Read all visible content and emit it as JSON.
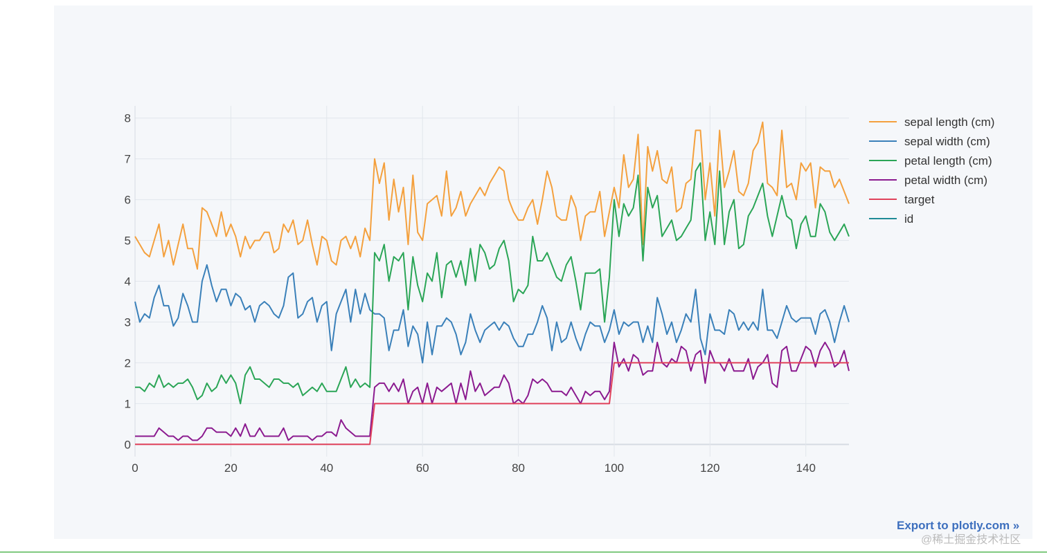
{
  "chart_data": {
    "type": "line",
    "title": "",
    "xlabel": "",
    "ylabel": "",
    "xlim": [
      0,
      149
    ],
    "ylim": [
      -0.3,
      8.3
    ],
    "x_ticks": [
      0,
      20,
      40,
      60,
      80,
      100,
      120,
      140
    ],
    "y_ticks": [
      0,
      1,
      2,
      3,
      4,
      5,
      6,
      7,
      8
    ],
    "grid": true,
    "legend_position": "right",
    "series": [
      {
        "name": "sepal length (cm)",
        "color": "#f4a03d",
        "values": [
          5.1,
          4.9,
          4.7,
          4.6,
          5.0,
          5.4,
          4.6,
          5.0,
          4.4,
          4.9,
          5.4,
          4.8,
          4.8,
          4.3,
          5.8,
          5.7,
          5.4,
          5.1,
          5.7,
          5.1,
          5.4,
          5.1,
          4.6,
          5.1,
          4.8,
          5.0,
          5.0,
          5.2,
          5.2,
          4.7,
          4.8,
          5.4,
          5.2,
          5.5,
          4.9,
          5.0,
          5.5,
          4.9,
          4.4,
          5.1,
          5.0,
          4.5,
          4.4,
          5.0,
          5.1,
          4.8,
          5.1,
          4.6,
          5.3,
          5.0,
          7.0,
          6.4,
          6.9,
          5.5,
          6.5,
          5.7,
          6.3,
          4.9,
          6.6,
          5.2,
          5.0,
          5.9,
          6.0,
          6.1,
          5.6,
          6.7,
          5.6,
          5.8,
          6.2,
          5.6,
          5.9,
          6.1,
          6.3,
          6.1,
          6.4,
          6.6,
          6.8,
          6.7,
          6.0,
          5.7,
          5.5,
          5.5,
          5.8,
          6.0,
          5.4,
          6.0,
          6.7,
          6.3,
          5.6,
          5.5,
          5.5,
          6.1,
          5.8,
          5.0,
          5.6,
          5.7,
          5.7,
          6.2,
          5.1,
          5.7,
          6.3,
          5.8,
          7.1,
          6.3,
          6.5,
          7.6,
          4.9,
          7.3,
          6.7,
          7.2,
          6.5,
          6.4,
          6.8,
          5.7,
          5.8,
          6.4,
          6.5,
          7.7,
          7.7,
          6.0,
          6.9,
          5.6,
          7.7,
          6.3,
          6.7,
          7.2,
          6.2,
          6.1,
          6.4,
          7.2,
          7.4,
          7.9,
          6.4,
          6.3,
          6.1,
          7.7,
          6.3,
          6.4,
          6.0,
          6.9,
          6.7,
          6.9,
          5.8,
          6.8,
          6.7,
          6.7,
          6.3,
          6.5,
          6.2,
          5.9
        ]
      },
      {
        "name": "sepal width (cm)",
        "color": "#3a80b9",
        "values": [
          3.5,
          3.0,
          3.2,
          3.1,
          3.6,
          3.9,
          3.4,
          3.4,
          2.9,
          3.1,
          3.7,
          3.4,
          3.0,
          3.0,
          4.0,
          4.4,
          3.9,
          3.5,
          3.8,
          3.8,
          3.4,
          3.7,
          3.6,
          3.3,
          3.4,
          3.0,
          3.4,
          3.5,
          3.4,
          3.2,
          3.1,
          3.4,
          4.1,
          4.2,
          3.1,
          3.2,
          3.5,
          3.6,
          3.0,
          3.4,
          3.5,
          2.3,
          3.2,
          3.5,
          3.8,
          3.0,
          3.8,
          3.2,
          3.7,
          3.3,
          3.2,
          3.2,
          3.1,
          2.3,
          2.8,
          2.8,
          3.3,
          2.4,
          2.9,
          2.7,
          2.0,
          3.0,
          2.2,
          2.9,
          2.9,
          3.1,
          3.0,
          2.7,
          2.2,
          2.5,
          3.2,
          2.8,
          2.5,
          2.8,
          2.9,
          3.0,
          2.8,
          3.0,
          2.9,
          2.6,
          2.4,
          2.4,
          2.7,
          2.7,
          3.0,
          3.4,
          3.1,
          2.3,
          3.0,
          2.5,
          2.6,
          3.0,
          2.6,
          2.3,
          2.7,
          3.0,
          2.9,
          2.9,
          2.5,
          2.8,
          3.3,
          2.7,
          3.0,
          2.9,
          3.0,
          3.0,
          2.5,
          2.9,
          2.5,
          3.6,
          3.2,
          2.7,
          3.0,
          2.5,
          2.8,
          3.2,
          3.0,
          3.8,
          2.6,
          2.2,
          3.2,
          2.8,
          2.8,
          2.7,
          3.3,
          3.2,
          2.8,
          3.0,
          2.8,
          3.0,
          2.8,
          3.8,
          2.8,
          2.8,
          2.6,
          3.0,
          3.4,
          3.1,
          3.0,
          3.1,
          3.1,
          3.1,
          2.7,
          3.2,
          3.3,
          3.0,
          2.5,
          3.0,
          3.4,
          3.0
        ]
      },
      {
        "name": "petal length (cm)",
        "color": "#2aa556",
        "values": [
          1.4,
          1.4,
          1.3,
          1.5,
          1.4,
          1.7,
          1.4,
          1.5,
          1.4,
          1.5,
          1.5,
          1.6,
          1.4,
          1.1,
          1.2,
          1.5,
          1.3,
          1.4,
          1.7,
          1.5,
          1.7,
          1.5,
          1.0,
          1.7,
          1.9,
          1.6,
          1.6,
          1.5,
          1.4,
          1.6,
          1.6,
          1.5,
          1.5,
          1.4,
          1.5,
          1.2,
          1.3,
          1.4,
          1.3,
          1.5,
          1.3,
          1.3,
          1.3,
          1.6,
          1.9,
          1.4,
          1.6,
          1.4,
          1.5,
          1.4,
          4.7,
          4.5,
          4.9,
          4.0,
          4.6,
          4.5,
          4.7,
          3.3,
          4.6,
          3.9,
          3.5,
          4.2,
          4.0,
          4.7,
          3.6,
          4.4,
          4.5,
          4.1,
          4.5,
          3.9,
          4.8,
          4.0,
          4.9,
          4.7,
          4.3,
          4.4,
          4.8,
          5.0,
          4.5,
          3.5,
          3.8,
          3.7,
          3.9,
          5.1,
          4.5,
          4.5,
          4.7,
          4.4,
          4.1,
          4.0,
          4.4,
          4.6,
          4.0,
          3.3,
          4.2,
          4.2,
          4.2,
          4.3,
          3.0,
          4.1,
          6.0,
          5.1,
          5.9,
          5.6,
          5.8,
          6.6,
          4.5,
          6.3,
          5.8,
          6.1,
          5.1,
          5.3,
          5.5,
          5.0,
          5.1,
          5.3,
          5.5,
          6.7,
          6.9,
          5.0,
          5.7,
          4.9,
          6.7,
          4.9,
          5.7,
          6.0,
          4.8,
          4.9,
          5.6,
          5.8,
          6.1,
          6.4,
          5.6,
          5.1,
          5.6,
          6.1,
          5.6,
          5.5,
          4.8,
          5.4,
          5.6,
          5.1,
          5.1,
          5.9,
          5.7,
          5.2,
          5.0,
          5.2,
          5.4,
          5.1
        ]
      },
      {
        "name": "petal width (cm)",
        "color": "#8b1a8f",
        "values": [
          0.2,
          0.2,
          0.2,
          0.2,
          0.2,
          0.4,
          0.3,
          0.2,
          0.2,
          0.1,
          0.2,
          0.2,
          0.1,
          0.1,
          0.2,
          0.4,
          0.4,
          0.3,
          0.3,
          0.3,
          0.2,
          0.4,
          0.2,
          0.5,
          0.2,
          0.2,
          0.4,
          0.2,
          0.2,
          0.2,
          0.2,
          0.4,
          0.1,
          0.2,
          0.2,
          0.2,
          0.2,
          0.1,
          0.2,
          0.2,
          0.3,
          0.3,
          0.2,
          0.6,
          0.4,
          0.3,
          0.2,
          0.2,
          0.2,
          0.2,
          1.4,
          1.5,
          1.5,
          1.3,
          1.5,
          1.3,
          1.6,
          1.0,
          1.3,
          1.4,
          1.0,
          1.5,
          1.0,
          1.4,
          1.3,
          1.4,
          1.5,
          1.0,
          1.5,
          1.1,
          1.8,
          1.3,
          1.5,
          1.2,
          1.3,
          1.4,
          1.4,
          1.7,
          1.5,
          1.0,
          1.1,
          1.0,
          1.2,
          1.6,
          1.5,
          1.6,
          1.5,
          1.3,
          1.3,
          1.3,
          1.2,
          1.4,
          1.2,
          1.0,
          1.3,
          1.2,
          1.3,
          1.3,
          1.1,
          1.3,
          2.5,
          1.9,
          2.1,
          1.8,
          2.2,
          2.1,
          1.7,
          1.8,
          1.8,
          2.5,
          2.0,
          1.9,
          2.1,
          2.0,
          2.4,
          2.3,
          1.8,
          2.2,
          2.3,
          1.5,
          2.3,
          2.0,
          2.0,
          1.8,
          2.1,
          1.8,
          1.8,
          1.8,
          2.1,
          1.6,
          1.9,
          2.0,
          2.2,
          1.5,
          1.4,
          2.3,
          2.4,
          1.8,
          1.8,
          2.1,
          2.4,
          2.3,
          1.9,
          2.3,
          2.5,
          2.3,
          1.9,
          2.0,
          2.3,
          1.8
        ]
      },
      {
        "name": "target",
        "color": "#e0415a",
        "values": [
          0,
          0,
          0,
          0,
          0,
          0,
          0,
          0,
          0,
          0,
          0,
          0,
          0,
          0,
          0,
          0,
          0,
          0,
          0,
          0,
          0,
          0,
          0,
          0,
          0,
          0,
          0,
          0,
          0,
          0,
          0,
          0,
          0,
          0,
          0,
          0,
          0,
          0,
          0,
          0,
          0,
          0,
          0,
          0,
          0,
          0,
          0,
          0,
          0,
          0,
          1,
          1,
          1,
          1,
          1,
          1,
          1,
          1,
          1,
          1,
          1,
          1,
          1,
          1,
          1,
          1,
          1,
          1,
          1,
          1,
          1,
          1,
          1,
          1,
          1,
          1,
          1,
          1,
          1,
          1,
          1,
          1,
          1,
          1,
          1,
          1,
          1,
          1,
          1,
          1,
          1,
          1,
          1,
          1,
          1,
          1,
          1,
          1,
          1,
          1,
          2,
          2,
          2,
          2,
          2,
          2,
          2,
          2,
          2,
          2,
          2,
          2,
          2,
          2,
          2,
          2,
          2,
          2,
          2,
          2,
          2,
          2,
          2,
          2,
          2,
          2,
          2,
          2,
          2,
          2,
          2,
          2,
          2,
          2,
          2,
          2,
          2,
          2,
          2,
          2,
          2,
          2,
          2,
          2,
          2,
          2,
          2,
          2,
          2,
          2
        ]
      },
      {
        "name": "id",
        "color": "#1f8a96",
        "values": []
      }
    ]
  },
  "footer": {
    "export_label": "Export to plotly.com »",
    "watermark": "@稀土掘金技术社区"
  }
}
